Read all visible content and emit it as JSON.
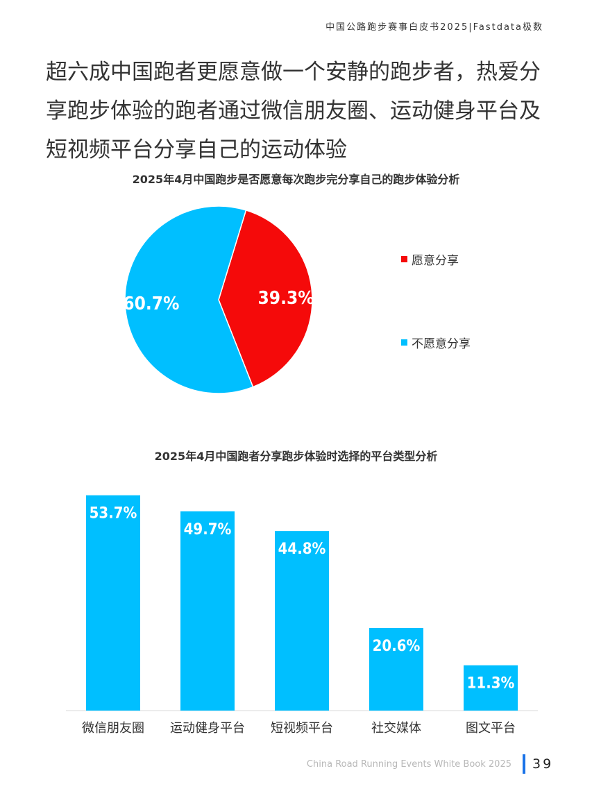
{
  "header": {
    "tag": "中国公路跑步赛事白皮书2025|Fastdata极数"
  },
  "headline": "超六成中国跑者更愿意做一个安静的跑步者，热爱分享跑步体验的跑者通过微信朋友圈、运动健身平台及短视频平台分享自己的运动体验",
  "chart_data": [
    {
      "type": "pie",
      "title": "2025年4月中国跑步是否愿意每次跑步完分享自己的跑步体验分析",
      "labels": [
        "愿意分享",
        "不愿意分享"
      ],
      "values": [
        39.3,
        60.7
      ],
      "value_labels": [
        "39.3%",
        "60.7%"
      ],
      "colors": [
        "#f50a0a",
        "#00bfff"
      ],
      "legend_position": "right"
    },
    {
      "type": "bar",
      "title": "2025年4月中国跑者分享跑步体验时选择的平台类型分析",
      "categories": [
        "微信朋友圈",
        "运动健身平台",
        "短视频平台",
        "社交媒体",
        "图文平台"
      ],
      "values": [
        53.7,
        49.7,
        44.8,
        20.6,
        11.3
      ],
      "value_labels": [
        "53.7%",
        "49.7%",
        "44.8%",
        "20.6%",
        "11.3%"
      ],
      "ylim": [
        0,
        54
      ],
      "color": "#00bfff",
      "grid": false
    }
  ],
  "footer": {
    "book_title": "China Road Running Events White Book 2025",
    "page_number": "39"
  }
}
